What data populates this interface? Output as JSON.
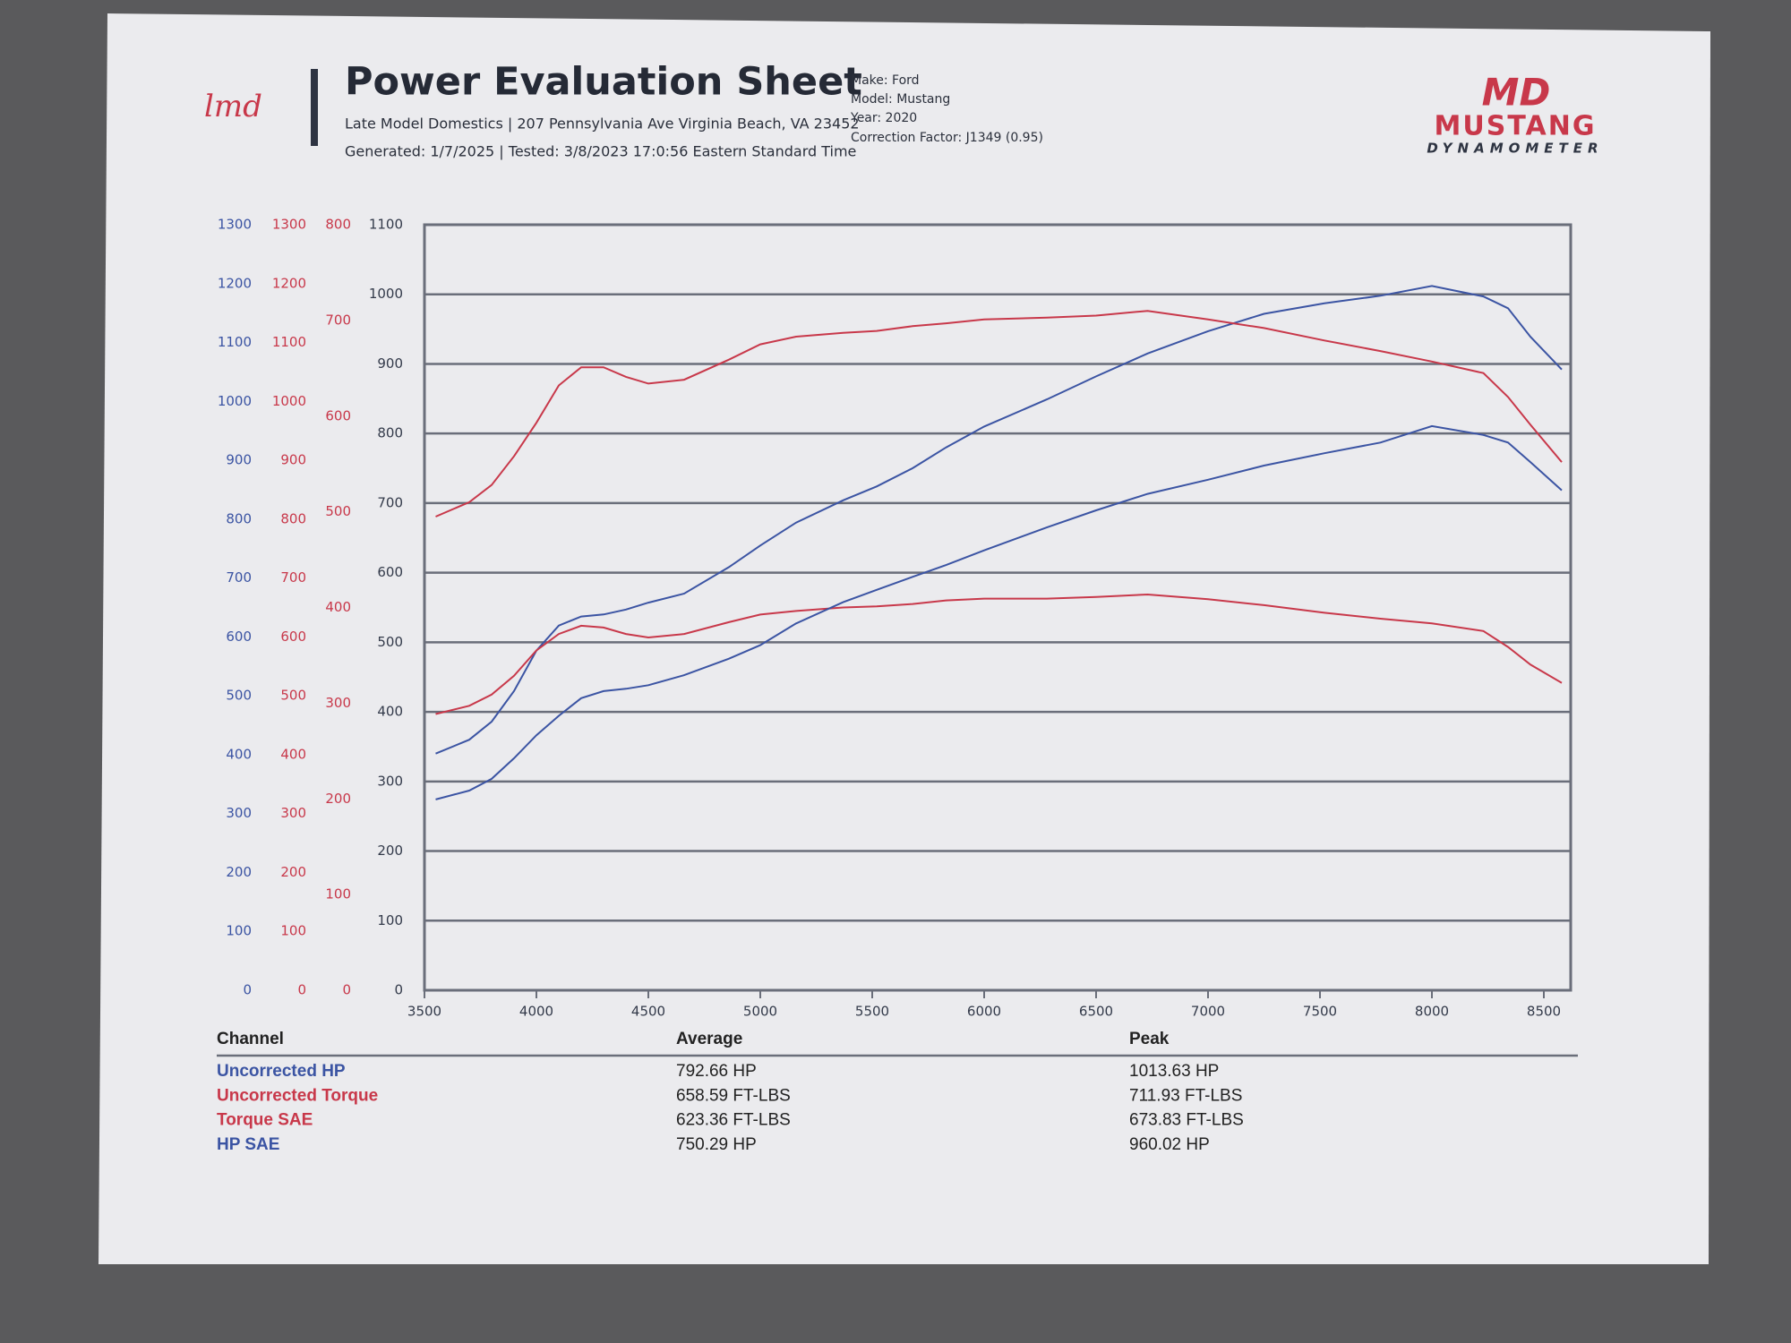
{
  "header": {
    "logo_text": "lmd",
    "title": "Power Evaluation Sheet",
    "subtitle": "Late Model Domestics | 207 Pennsylvania Ave Virginia Beach, VA 23452",
    "generated": "Generated: 1/7/2025 | Tested: 3/8/2023 17:0:56 Eastern Standard Time",
    "vehicle": [
      "Make: Ford",
      "Model: Mustang",
      "Year: 2020",
      "Correction Factor: J1349 (0.95)"
    ],
    "brand": [
      "MD",
      "MUSTANG",
      "DYNAMOMETER"
    ]
  },
  "chart_data": {
    "type": "line",
    "x": [
      3550,
      3700,
      3800,
      3900,
      4000,
      4100,
      4200,
      4300,
      4400,
      4500,
      4660,
      4860,
      5000,
      5160,
      5370,
      5520,
      5680,
      5830,
      6000,
      6280,
      6500,
      6730,
      7000,
      7250,
      7520,
      7770,
      8000,
      8230,
      8340,
      8440,
      8580
    ],
    "xlim": [
      3500,
      8620
    ],
    "xticks": [
      3500,
      4000,
      4500,
      5000,
      5500,
      6000,
      6500,
      7000,
      7500,
      8000,
      8500
    ],
    "axes": [
      {
        "color": "#3b54a3",
        "ylim": [
          0,
          1300
        ],
        "yticks": [
          0,
          100,
          200,
          300,
          400,
          500,
          600,
          700,
          800,
          900,
          1000,
          1100,
          1200,
          1300
        ]
      },
      {
        "color": "#c8384a",
        "ylim": [
          0,
          1300
        ],
        "yticks": [
          0,
          100,
          200,
          300,
          400,
          500,
          600,
          700,
          800,
          900,
          1000,
          1100,
          1200,
          1300
        ]
      },
      {
        "color": "#c8384a",
        "ylim": [
          0,
          800
        ],
        "yticks": [
          0,
          100,
          200,
          300,
          400,
          500,
          600,
          700,
          800
        ]
      },
      {
        "color": "#333a4a",
        "ylim": [
          0,
          1100
        ],
        "yticks": [
          0,
          100,
          200,
          300,
          400,
          500,
          600,
          700,
          800,
          900,
          1000,
          1100
        ],
        "grid": true
      }
    ],
    "series": [
      {
        "name": "Uncorrected HP",
        "color": "#3b54a3",
        "axis": 3,
        "values": [
          340,
          360,
          386,
          430,
          488,
          524,
          537,
          540,
          547,
          557,
          570,
          608,
          639,
          672,
          704,
          724,
          750,
          780,
          810,
          849,
          882,
          915,
          947,
          972,
          987,
          998,
          1012,
          997,
          980,
          939,
          892
        ]
      },
      {
        "name": "Uncorrected Torque",
        "color": "#c8384a",
        "axis": 2,
        "values": [
          495,
          510,
          528,
          558,
          593,
          632,
          651,
          651,
          641,
          634,
          638,
          659,
          675,
          683,
          687,
          689,
          694,
          697,
          701,
          703,
          705,
          710,
          701,
          692,
          679,
          668,
          657,
          645,
          620,
          591,
          552
        ]
      },
      {
        "name": "Torque SAE",
        "color": "#c8384a",
        "axis": 1,
        "values": [
          469,
          483,
          502,
          534,
          577,
          605,
          619,
          616,
          605,
          599,
          605,
          625,
          638,
          644,
          650,
          652,
          656,
          662,
          665,
          665,
          668,
          672,
          664,
          654,
          641,
          631,
          623,
          610,
          583,
          553,
          522
        ]
      },
      {
        "name": "HP SAE",
        "color": "#3b54a3",
        "axis": 0,
        "values": [
          324,
          339,
          359,
          394,
          433,
          466,
          496,
          508,
          512,
          518,
          535,
          563,
          586,
          623,
          659,
          680,
          702,
          722,
          747,
          786,
          815,
          843,
          867,
          891,
          912,
          930,
          958,
          943,
          930,
          897,
          849
        ]
      }
    ]
  },
  "table": {
    "columns": [
      "Channel",
      "Average",
      "Peak"
    ],
    "rows": [
      [
        "792.66 HP",
        "1013.63 HP"
      ],
      [
        "658.59 FT-LBS",
        "711.93 FT-LBS"
      ],
      [
        "623.36 FT-LBS",
        "673.83 FT-LBS"
      ],
      [
        "750.29 HP",
        "960.02 HP"
      ]
    ]
  }
}
